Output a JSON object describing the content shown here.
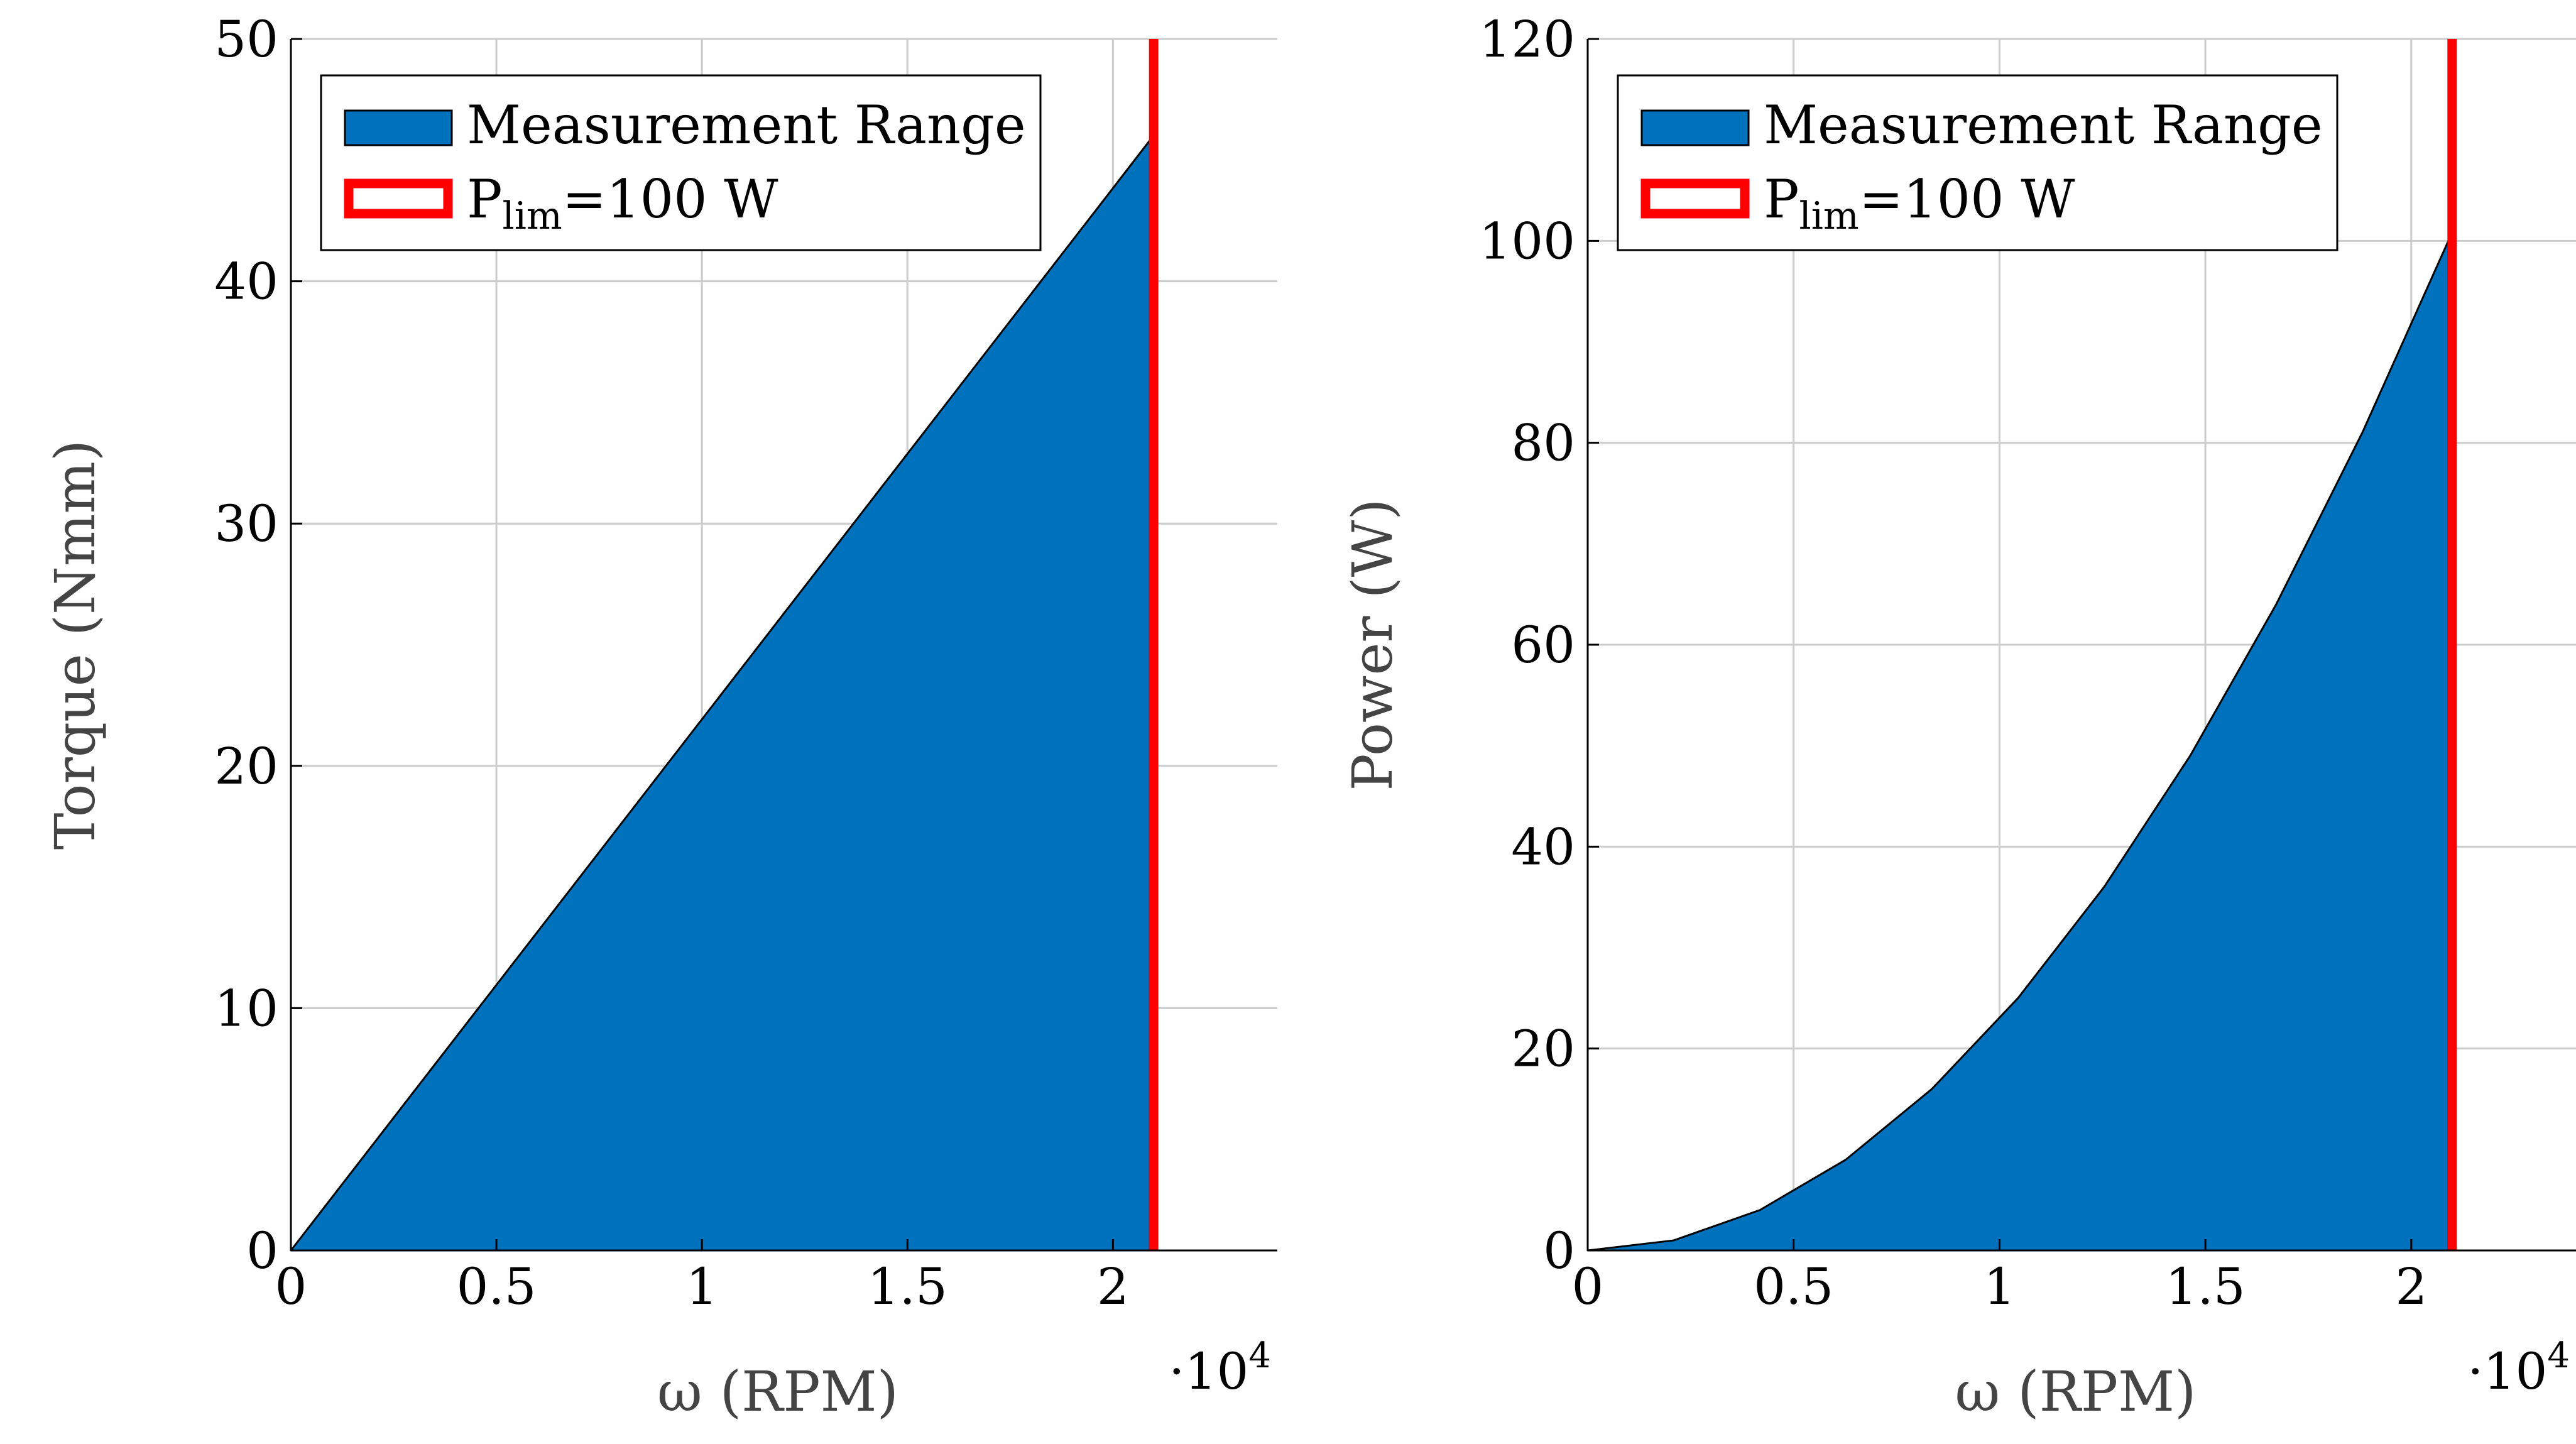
{
  "chart_data": [
    {
      "type": "area",
      "xlabel": "ω (RPM)",
      "ylabel": "Torque (Nmm)",
      "x_multiplier": "·10^4",
      "xlim": [
        0,
        24000
      ],
      "ylim": [
        0,
        50
      ],
      "xticks": [
        0,
        5000,
        10000,
        15000,
        20000
      ],
      "xtick_labels": [
        "0",
        "0.5",
        "1",
        "1.5",
        "2"
      ],
      "yticks": [
        0,
        10,
        20,
        30,
        40,
        50
      ],
      "ytick_labels": [
        "0",
        "10",
        "20",
        "30",
        "40",
        "50"
      ],
      "grid": true,
      "legend_position": "top-left",
      "series": [
        {
          "name": "Measurement Range",
          "kind": "filled_area",
          "color": "#0072BD",
          "x": [
            0,
            5000,
            10000,
            15000,
            20000,
            20900
          ],
          "y": [
            0,
            10.96,
            21.92,
            32.88,
            43.84,
            45.82
          ]
        },
        {
          "name": "P_lim=100 W",
          "kind": "vertical_line",
          "color": "#FF0000",
          "x": 20900
        }
      ]
    },
    {
      "type": "area",
      "xlabel": "ω (RPM)",
      "ylabel": "Power (W)",
      "x_multiplier": "·10^4",
      "xlim": [
        0,
        24000
      ],
      "ylim": [
        0,
        120
      ],
      "xticks": [
        0,
        5000,
        10000,
        15000,
        20000
      ],
      "xtick_labels": [
        "0",
        "0.5",
        "1",
        "1.5",
        "2"
      ],
      "yticks": [
        0,
        20,
        40,
        60,
        80,
        100,
        120
      ],
      "ytick_labels": [
        "0",
        "20",
        "40",
        "60",
        "80",
        "100",
        "120"
      ],
      "grid": true,
      "legend_position": "top-left",
      "series": [
        {
          "name": "Measurement Range",
          "kind": "filled_area",
          "color": "#0072BD",
          "x": [
            0,
            2090,
            4180,
            6270,
            8360,
            10450,
            12540,
            14630,
            16720,
            18810,
            20900
          ],
          "y": [
            0,
            1,
            4,
            9,
            16,
            25,
            36,
            49,
            64,
            81,
            100
          ]
        },
        {
          "name": "P_lim=100 W",
          "kind": "vertical_line",
          "color": "#FF0000",
          "x": 20900
        }
      ]
    }
  ]
}
